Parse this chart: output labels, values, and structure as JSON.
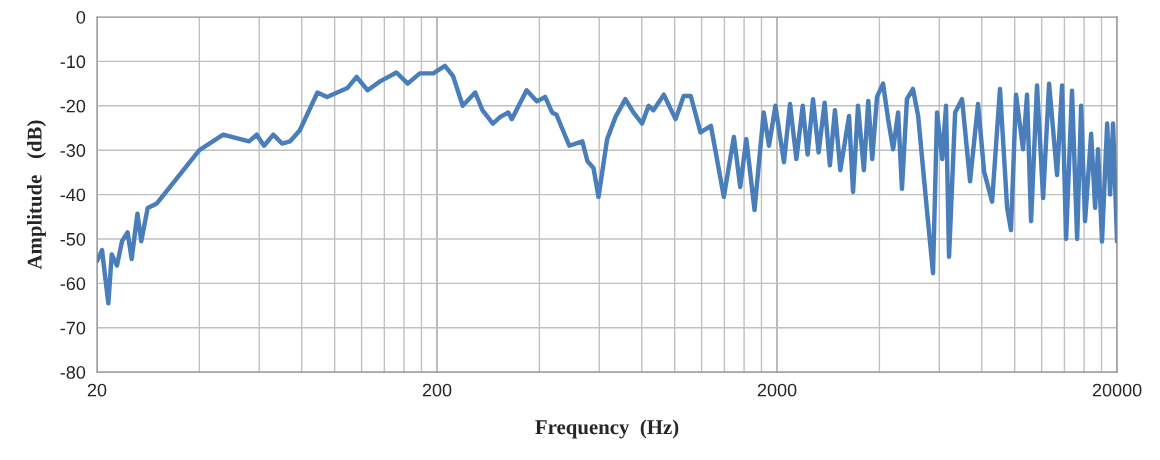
{
  "chart_data": {
    "type": "line",
    "xlabel": "Frequency  (Hz)",
    "ylabel": "Amplitude   (dB)",
    "log": "x",
    "grid": true,
    "xlim": [
      20,
      20000
    ],
    "ylim": [
      -80,
      0
    ],
    "xticks": [
      20,
      {
        "value": 40,
        "label": null
      },
      {
        "value": 60,
        "label": null
      },
      {
        "value": 80,
        "label": null
      },
      {
        "value": 100,
        "label": null
      },
      {
        "value": 120,
        "label": null
      },
      {
        "value": 140,
        "label": null
      },
      {
        "value": 160,
        "label": null
      },
      {
        "value": 180,
        "label": null
      },
      200,
      {
        "value": 400,
        "label": null
      },
      {
        "value": 600,
        "label": null
      },
      {
        "value": 800,
        "label": null
      },
      {
        "value": 1000,
        "label": null
      },
      {
        "value": 1200,
        "label": null
      },
      {
        "value": 1400,
        "label": null
      },
      {
        "value": 1600,
        "label": null
      },
      {
        "value": 1800,
        "label": null
      },
      2000,
      {
        "value": 4000,
        "label": null
      },
      {
        "value": 6000,
        "label": null
      },
      {
        "value": 8000,
        "label": null
      },
      {
        "value": 10000,
        "label": null
      },
      {
        "value": 12000,
        "label": null
      },
      {
        "value": 14000,
        "label": null
      },
      {
        "value": 16000,
        "label": null
      },
      {
        "value": 18000,
        "label": null
      },
      20000
    ],
    "yticks": [
      -80,
      -70,
      -60,
      -50,
      -40,
      -30,
      -20,
      -10,
      0
    ],
    "series": [
      {
        "color": "#4a7ebb",
        "x": [
          20,
          20.7,
          21.1,
          21.6,
          22.1,
          22.9,
          23.7,
          24.6,
          25.3,
          26.3,
          27.0,
          28.2,
          30,
          40,
          47,
          56,
          59,
          62,
          66,
          70,
          74,
          79,
          89,
          95,
          109,
          116,
          125,
          136,
          152,
          164,
          178,
          195,
          211,
          223,
          238,
          259,
          272,
          292,
          307,
          324,
          332,
          367,
          393,
          416,
          436,
          449,
          490,
          535,
          554,
          577,
          597,
          633,
          670,
          716,
          756,
          802,
          838,
          866,
          929,
          1006,
          1063,
          1115,
          1191,
          1278,
          1395,
          1493,
          1559,
          1624,
          1717,
          1827,
          1894,
          1978,
          2096,
          2184,
          2280,
          2380,
          2460,
          2552,
          2650,
          2760,
          2860,
          2960,
          3070,
          3257,
          3346,
          3460,
          3600,
          3710,
          3810,
          3936,
          4100,
          4243,
          4390,
          4540,
          4660,
          4820,
          5020,
          5200,
          5490,
          5750,
          5910,
          6120,
          6280,
          6410,
          6680,
          7000,
          7390,
          7800,
          8130,
          8580,
          9050,
          9500,
          9750,
          10090,
          10580,
          10870,
          11170,
          11630,
          12120,
          12620,
          13320,
          13780,
          14160,
          14740,
          15260,
          15680,
          16100,
          16780,
          17240,
          17580,
          18060,
          18700,
          19080,
          19460,
          20000
        ],
        "values": [
          -55,
          -52.5,
          -58,
          -64.5,
          -53.5,
          -56,
          -50.5,
          -48.5,
          -54.5,
          -44.3,
          -50.5,
          -43,
          -42,
          -30,
          -26.5,
          -28,
          -26.5,
          -29,
          -26.5,
          -28.5,
          -28,
          -25.5,
          -17,
          -18,
          -16,
          -13.5,
          -16.5,
          -14.5,
          -12.5,
          -15,
          -12.7,
          -12.7,
          -11,
          -13.3,
          -20,
          -17,
          -21,
          -24,
          -22.5,
          -21.5,
          -23,
          -16.5,
          -19,
          -18,
          -21.5,
          -22,
          -29,
          -28,
          -32.5,
          -34,
          -40.5,
          -27.5,
          -22.5,
          -18.5,
          -21.5,
          -24,
          -20,
          -21,
          -17.5,
          -23,
          -17.8,
          -17.8,
          -26,
          -24.5,
          -40.5,
          -27,
          -38.3,
          -27.5,
          -43.5,
          -21.5,
          -29,
          -20,
          -32.7,
          -19.6,
          -32,
          -20,
          -31,
          -18.5,
          -30.5,
          -19.3,
          -33.4,
          -21,
          -34.5,
          -22.3,
          -39.4,
          -20,
          -34.5,
          -18.9,
          -32,
          -18,
          -15,
          -23,
          -29.8,
          -21.5,
          -38.7,
          -18.5,
          -16.2,
          -22.3,
          -41.6,
          -57.7,
          -21.5,
          -32,
          -20,
          -54,
          -21.5,
          -18.5,
          -37,
          -19.6,
          -34.9,
          -41.6,
          -16.2,
          -43,
          -48,
          -17.5,
          -29.8,
          -17.5,
          -46,
          -15.4,
          -40.8,
          -15,
          -35.6,
          -15.4,
          -50,
          -16.6,
          -50,
          -20,
          -46,
          -26.3,
          -43,
          -29.8,
          -50.6,
          -24,
          -40,
          -24,
          -50.6
        ]
      }
    ]
  }
}
